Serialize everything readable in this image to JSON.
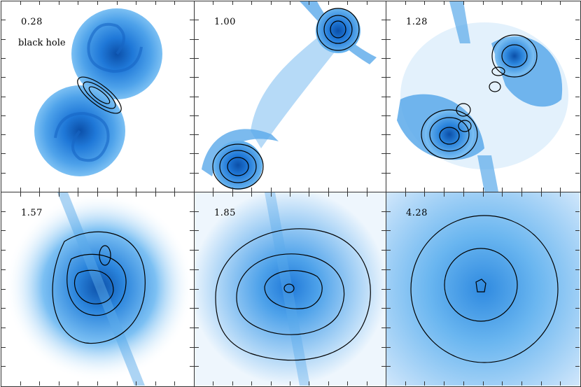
{
  "panels": [
    {
      "time": "0.28",
      "annotation": "black hole"
    },
    {
      "time": "1.00"
    },
    {
      "time": "1.28"
    },
    {
      "time": "1.57"
    },
    {
      "time": "1.85"
    },
    {
      "time": "4.28"
    }
  ],
  "colors": {
    "gas_light": "#cfe6fb",
    "gas_mid": "#5fb0ee",
    "gas_dense": "#1f78d8",
    "gas_core": "#0b4fa8",
    "contour": "#000000"
  }
}
